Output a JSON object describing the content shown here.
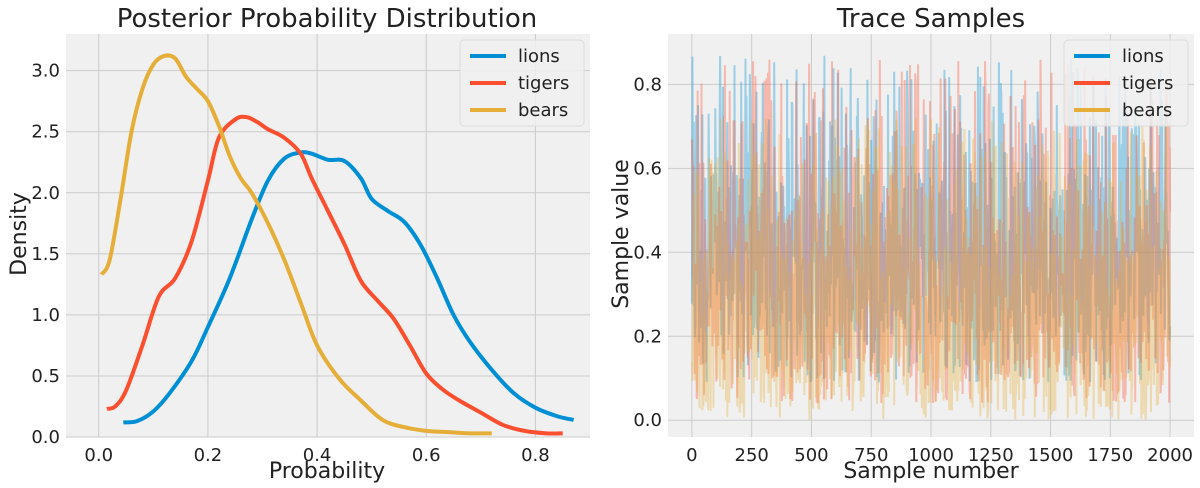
{
  "colors": {
    "lions": "#008fd5",
    "tigers": "#fc4f30",
    "bears": "#e5ae38",
    "axes_bg": "#f0f0f0",
    "grid": "#cbcbcb"
  },
  "chart_data": [
    {
      "type": "line",
      "title": "Posterior Probability Distribution",
      "xlabel": "Probability",
      "ylabel": "Density",
      "xlim": [
        -0.06,
        0.9
      ],
      "ylim": [
        0,
        3.3
      ],
      "xticks": [
        0.0,
        0.2,
        0.4,
        0.6,
        0.8
      ],
      "xtick_labels": [
        "0.0",
        "0.2",
        "0.4",
        "0.6",
        "0.8"
      ],
      "yticks": [
        0.0,
        0.5,
        1.0,
        1.5,
        2.0,
        2.5,
        3.0
      ],
      "ytick_labels": [
        "0.0",
        "0.5",
        "1.0",
        "1.5",
        "2.0",
        "2.5",
        "3.0"
      ],
      "grid": true,
      "legend": "top-right",
      "series": [
        {
          "name": "lions",
          "color": "#008fd5",
          "x": [
            0.045,
            0.07,
            0.1,
            0.13,
            0.17,
            0.2,
            0.24,
            0.28,
            0.31,
            0.34,
            0.37,
            0.39,
            0.42,
            0.45,
            0.48,
            0.5,
            0.53,
            0.56,
            0.59,
            0.62,
            0.65,
            0.68,
            0.72,
            0.76,
            0.8,
            0.84,
            0.87
          ],
          "y": [
            0.12,
            0.13,
            0.21,
            0.36,
            0.62,
            0.9,
            1.3,
            1.78,
            2.1,
            2.28,
            2.33,
            2.32,
            2.27,
            2.26,
            2.12,
            1.95,
            1.85,
            1.76,
            1.57,
            1.3,
            1.0,
            0.78,
            0.55,
            0.36,
            0.24,
            0.17,
            0.14
          ]
        },
        {
          "name": "tigers",
          "color": "#fc4f30",
          "x": [
            0.015,
            0.03,
            0.05,
            0.08,
            0.11,
            0.14,
            0.17,
            0.2,
            0.22,
            0.25,
            0.27,
            0.29,
            0.31,
            0.34,
            0.37,
            0.39,
            0.42,
            0.45,
            0.48,
            0.51,
            0.54,
            0.57,
            0.6,
            0.63,
            0.66,
            0.7,
            0.74,
            0.78,
            0.82,
            0.85
          ],
          "y": [
            0.23,
            0.25,
            0.38,
            0.75,
            1.15,
            1.3,
            1.6,
            2.1,
            2.45,
            2.6,
            2.62,
            2.58,
            2.52,
            2.45,
            2.32,
            2.12,
            1.85,
            1.58,
            1.28,
            1.12,
            0.97,
            0.75,
            0.52,
            0.39,
            0.3,
            0.2,
            0.1,
            0.05,
            0.03,
            0.03
          ]
        },
        {
          "name": "bears",
          "color": "#e5ae38",
          "x": [
            0.005,
            0.02,
            0.04,
            0.06,
            0.08,
            0.1,
            0.12,
            0.14,
            0.16,
            0.18,
            0.2,
            0.22,
            0.24,
            0.26,
            0.28,
            0.31,
            0.34,
            0.37,
            0.4,
            0.44,
            0.48,
            0.52,
            0.56,
            0.6,
            0.64,
            0.68,
            0.72
          ],
          "y": [
            1.33,
            1.45,
            1.95,
            2.5,
            2.85,
            3.05,
            3.12,
            3.1,
            2.95,
            2.85,
            2.75,
            2.55,
            2.3,
            2.12,
            2.0,
            1.75,
            1.45,
            1.1,
            0.75,
            0.48,
            0.3,
            0.14,
            0.08,
            0.05,
            0.04,
            0.03,
            0.03
          ]
        }
      ]
    },
    {
      "type": "line",
      "title": "Trace Samples",
      "xlabel": "Sample number",
      "ylabel": "Sample value",
      "xlim": [
        -100,
        2100
      ],
      "ylim": [
        -0.04,
        0.92
      ],
      "xticks": [
        0,
        250,
        500,
        750,
        1000,
        1250,
        1500,
        1750,
        2000
      ],
      "xtick_labels": [
        "0",
        "250",
        "500",
        "750",
        "1000",
        "1250",
        "1500",
        "1750",
        "2000"
      ],
      "yticks": [
        0.0,
        0.2,
        0.4,
        0.6,
        0.8
      ],
      "ytick_labels": [
        "0.0",
        "0.2",
        "0.4",
        "0.6",
        "0.8"
      ],
      "grid": true,
      "legend": "top-right",
      "n_samples": 2000,
      "series": [
        {
          "name": "lions",
          "color": "#008fd5",
          "alpha": 0.35,
          "range": [
            0.09,
            0.87
          ],
          "center": 0.4
        },
        {
          "name": "tigers",
          "color": "#fc4f30",
          "alpha": 0.35,
          "range": [
            0.04,
            0.86
          ],
          "center": 0.3
        },
        {
          "name": "bears",
          "color": "#e5ae38",
          "alpha": 0.35,
          "range": [
            0.0,
            0.72
          ],
          "center": 0.22
        }
      ]
    }
  ]
}
